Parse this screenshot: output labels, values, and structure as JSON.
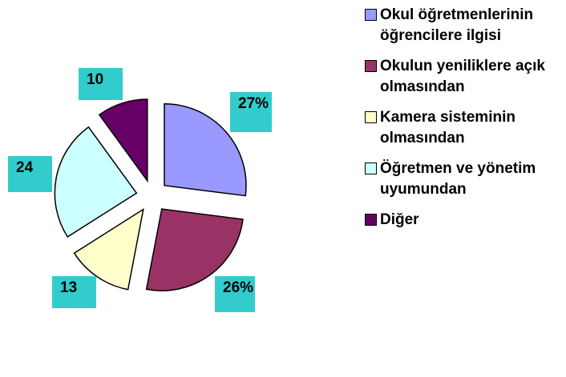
{
  "chart_data": {
    "type": "pie",
    "categories": [
      "Okul öğretmenlerinin öğrencilere ilgisi",
      "Okulun yeniliklere açık olmasından",
      "Kamera sisteminin olmasından",
      "Öğretmen ve yönetim uyumundan",
      "Diğer"
    ],
    "values": [
      27,
      26,
      13,
      24,
      10
    ],
    "value_labels": [
      "27%",
      "26%",
      "13",
      "24",
      "10"
    ],
    "colors": [
      "#9999ff",
      "#993366",
      "#ffffcc",
      "#ccffff",
      "#660066"
    ]
  }
}
